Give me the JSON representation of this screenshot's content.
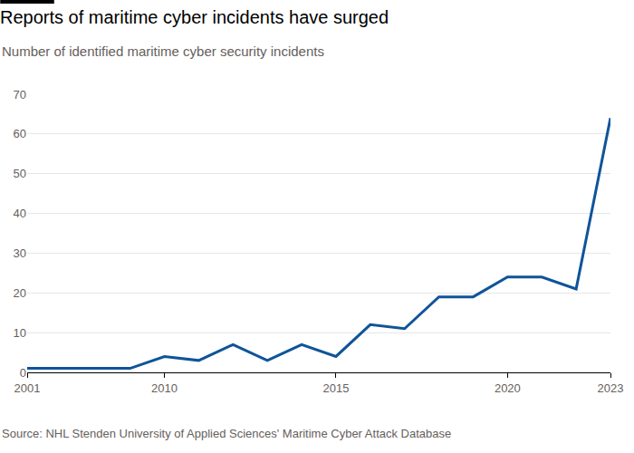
{
  "chart_data": {
    "type": "line",
    "title": "Reports of maritime cyber incidents have surged",
    "subtitle": "Number of identified maritime cyber security incidents",
    "source": "Source: NHL Stenden University of Applied Sciences' Maritime Cyber Attack Database",
    "categories": [
      "2001",
      null,
      null,
      null,
      "2010",
      null,
      null,
      null,
      null,
      "2015",
      null,
      null,
      null,
      null,
      "2020",
      null,
      null,
      "2023"
    ],
    "values": [
      1,
      1,
      1,
      1,
      4,
      3,
      7,
      3,
      7,
      4,
      12,
      11,
      19,
      19,
      24,
      24,
      21,
      64
    ],
    "color": "#0f5499",
    "ylim": [
      0,
      70
    ],
    "yticks": [
      0,
      10,
      20,
      30,
      40,
      50,
      60,
      70
    ],
    "grid": true
  }
}
